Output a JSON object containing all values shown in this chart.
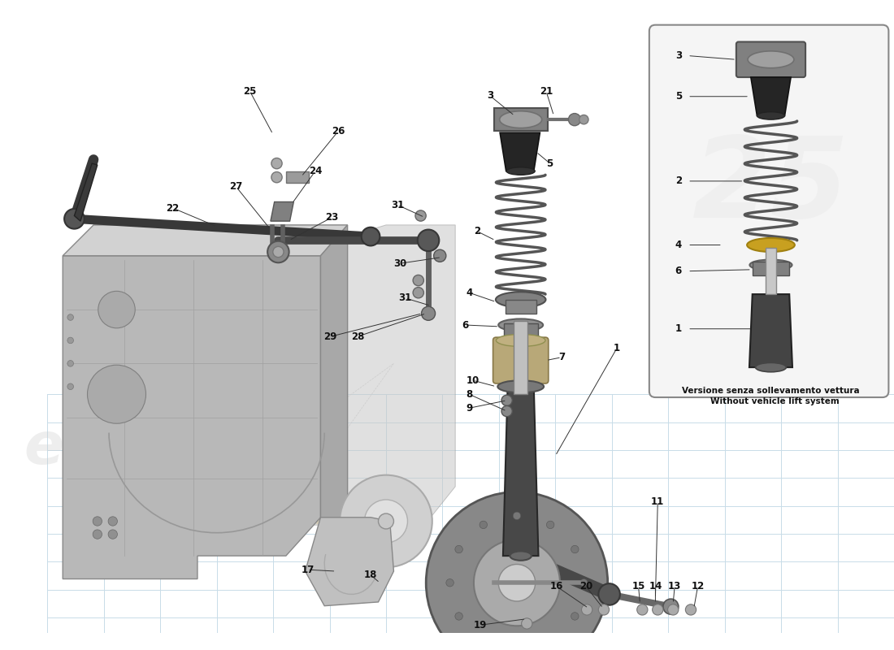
{
  "bg_color": "#ffffff",
  "grid_color": "#c8dce8",
  "chassis_face": "#c0c0c0",
  "chassis_edge": "#909090",
  "chassis_top": "#d8d8d8",
  "chassis_shadow": "#b0b0b0",
  "part_dark": "#3a3a3a",
  "part_mid": "#707070",
  "part_light": "#b0b0b0",
  "spring_color": "#585858",
  "shock_body": "#505050",
  "rubber_color": "#282828",
  "gold_color": "#c8a020",
  "inset_bg": "#f5f5f5",
  "inset_edge": "#888888",
  "label_color": "#111111",
  "leader_color": "#333333",
  "watermark_color": "#d0d0d0",
  "watermark_gold": "#c8a020",
  "inset_text1": "Versione senza sollevamento vettura",
  "inset_text2": "Without vehicle lift system"
}
